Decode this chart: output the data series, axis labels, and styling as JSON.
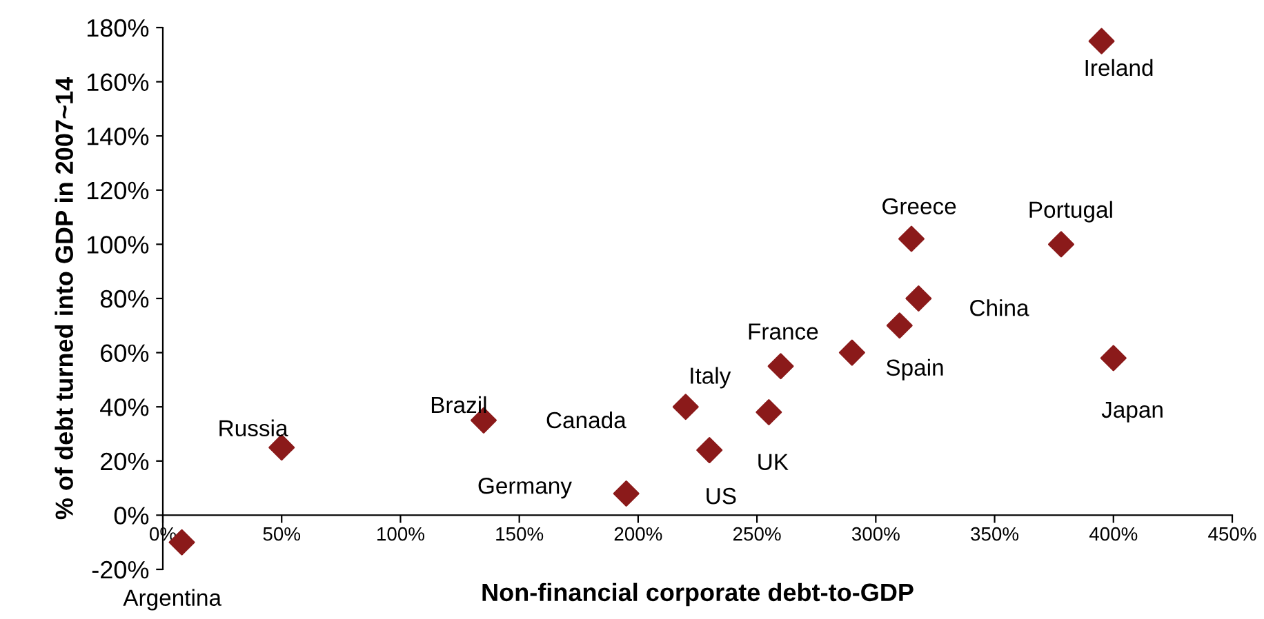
{
  "chart_data": {
    "type": "scatter",
    "xlabel": "Non-financial corporate debt-to-GDP",
    "ylabel": "% of debt turned into GDP in 2007~14",
    "series": [
      {
        "color": "#8b1a1a",
        "x": [
          8,
          50,
          135,
          195,
          220,
          230,
          255,
          260,
          290,
          310,
          315,
          318,
          378,
          395,
          400
        ],
        "values": [
          -10,
          25,
          35,
          8,
          40,
          24,
          38,
          55,
          60,
          70,
          102,
          80,
          100,
          175,
          58
        ]
      }
    ],
    "annotations": [
      {
        "text": "Argentina",
        "x": 8,
        "y": -10
      },
      {
        "text": "Russia",
        "x": 50,
        "y": 25
      },
      {
        "text": "Brazil",
        "x": 135,
        "y": 35
      },
      {
        "text": "Germany",
        "x": 195,
        "y": 8
      },
      {
        "text": "Canada",
        "x": 220,
        "y": 40
      },
      {
        "text": "US",
        "x": 230,
        "y": 24
      },
      {
        "text": "UK",
        "x": 255,
        "y": 38
      },
      {
        "text": "Italy",
        "x": 260,
        "y": 55
      },
      {
        "text": "France",
        "x": 290,
        "y": 60
      },
      {
        "text": "Spain",
        "x": 310,
        "y": 70
      },
      {
        "text": "Greece",
        "x": 315,
        "y": 102
      },
      {
        "text": "China",
        "x": 318,
        "y": 80
      },
      {
        "text": "Portugal",
        "x": 378,
        "y": 100
      },
      {
        "text": "Ireland",
        "x": 395,
        "y": 175
      },
      {
        "text": "Japan",
        "x": 400,
        "y": 58
      }
    ],
    "xlim": [
      0,
      450
    ],
    "ylim": [
      -20,
      180
    ],
    "xticks": [
      {
        "value": 0,
        "label": "0%"
      },
      {
        "value": 50,
        "label": "50%"
      },
      {
        "value": 100,
        "label": "100%"
      },
      {
        "value": 150,
        "label": "150%"
      },
      {
        "value": 200,
        "label": "200%"
      },
      {
        "value": 250,
        "label": "250%"
      },
      {
        "value": 300,
        "label": "300%"
      },
      {
        "value": 350,
        "label": "350%"
      },
      {
        "value": 400,
        "label": "400%"
      },
      {
        "value": 450,
        "label": "450%"
      }
    ],
    "yticks": [
      {
        "value": -20,
        "label": "-20%"
      },
      {
        "value": 0,
        "label": "0%"
      },
      {
        "value": 20,
        "label": "20%"
      },
      {
        "value": 40,
        "label": "40%"
      },
      {
        "value": 60,
        "label": "60%"
      },
      {
        "value": 80,
        "label": "80%"
      },
      {
        "value": 100,
        "label": "100%"
      },
      {
        "value": 120,
        "label": "120%"
      },
      {
        "value": 140,
        "label": "140%"
      },
      {
        "value": 160,
        "label": "160%"
      },
      {
        "value": 180,
        "label": "180%"
      }
    ],
    "marker": "diamond",
    "grid": false,
    "legend": false
  }
}
